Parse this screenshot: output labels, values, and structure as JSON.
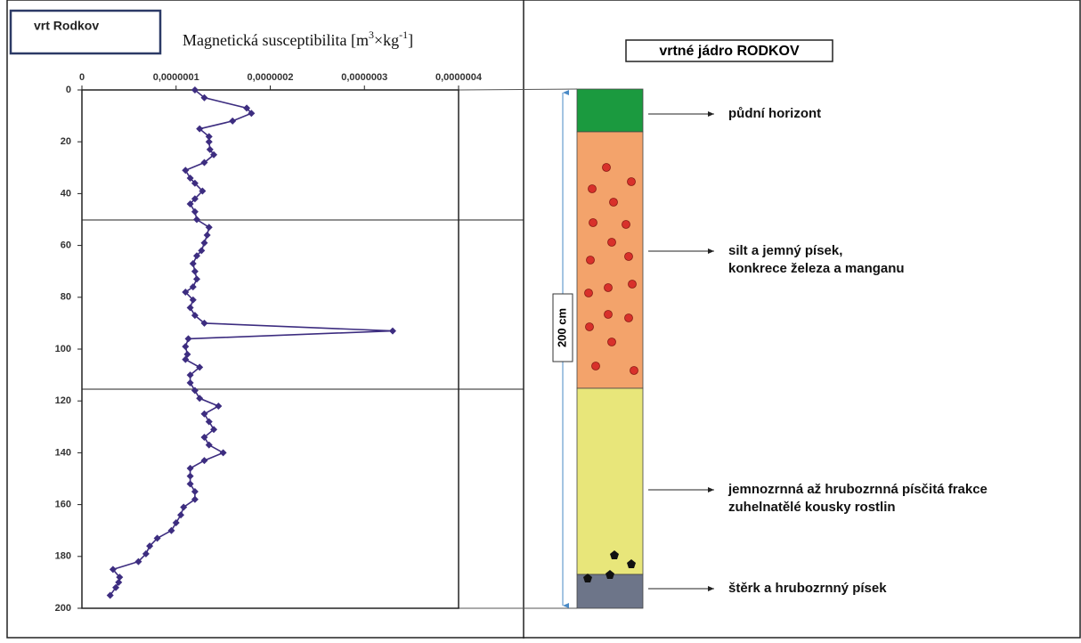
{
  "sidebar_label": "vrt Rodkov",
  "chart_data": {
    "type": "line",
    "orientation": "vertical",
    "title_parts": [
      "Magnetická susceptibilita [m",
      "3",
      "×kg",
      "-1",
      "]"
    ],
    "color": "#3d2d80",
    "xlim": [
      0,
      4e-07
    ],
    "xticks": [
      0,
      {
        "value": 1e-07,
        "label": "0,0000001"
      },
      {
        "value": 2e-07,
        "label": "0,0000002"
      },
      {
        "value": 3e-07,
        "label": "0,0000003"
      },
      {
        "value": 4e-07,
        "label": "0,0000004"
      }
    ],
    "ylim": [
      0,
      200
    ],
    "y_inverted": true,
    "yticks": [
      0,
      20,
      40,
      60,
      80,
      100,
      120,
      140,
      160,
      180,
      200
    ],
    "depth": [
      0,
      3,
      7,
      9,
      12,
      15,
      18,
      20,
      23,
      25,
      28,
      31,
      34,
      36,
      39,
      42,
      44,
      47,
      50,
      53,
      56,
      59,
      62,
      64,
      67,
      70,
      73,
      76,
      78,
      81,
      84,
      87,
      90,
      93,
      96,
      99,
      102,
      104,
      107,
      110,
      113,
      116,
      119,
      122,
      125,
      128,
      131,
      134,
      137,
      140,
      143,
      146,
      149,
      152,
      155,
      158,
      161,
      164,
      167,
      170,
      173,
      176,
      179,
      182,
      185,
      188,
      190,
      192,
      195
    ],
    "values": [
      1.2e-07,
      1.3e-07,
      1.75e-07,
      1.8e-07,
      1.6e-07,
      1.25e-07,
      1.35e-07,
      1.35e-07,
      1.36e-07,
      1.4e-07,
      1.3e-07,
      1.1e-07,
      1.15e-07,
      1.2e-07,
      1.28e-07,
      1.2e-07,
      1.15e-07,
      1.2e-07,
      1.22e-07,
      1.35e-07,
      1.33e-07,
      1.3e-07,
      1.27e-07,
      1.22e-07,
      1.18e-07,
      1.2e-07,
      1.22e-07,
      1.18e-07,
      1.1e-07,
      1.18e-07,
      1.15e-07,
      1.2e-07,
      1.3e-07,
      3.3e-07,
      1.13e-07,
      1.1e-07,
      1.12e-07,
      1.1e-07,
      1.25e-07,
      1.15e-07,
      1.15e-07,
      1.2e-07,
      1.25e-07,
      1.45e-07,
      1.3e-07,
      1.35e-07,
      1.4e-07,
      1.3e-07,
      1.35e-07,
      1.5e-07,
      1.3e-07,
      1.15e-07,
      1.15e-07,
      1.15e-07,
      1.2e-07,
      1.2e-07,
      1.08e-07,
      1.05e-07,
      1e-07,
      9.5e-08,
      8e-08,
      7.2e-08,
      6.8e-08,
      6e-08,
      3.3e-08,
      4e-08,
      3.9e-08,
      3.6e-08,
      3e-08
    ]
  },
  "core": {
    "title": "vrtné jádro RODKOV",
    "thickness_label": "200 cm",
    "layers": [
      {
        "lines": [
          "půdní horizont"
        ],
        "color": "#1b9a3f"
      },
      {
        "lines": [
          "silt a jemný písek,",
          "konkrece železa a manganu"
        ],
        "color": "#f3a36b"
      },
      {
        "lines": [
          "jemnozrnná až hrubozrnná písčitá frakce",
          "zuhelnatělé kousky rostlin"
        ],
        "color": "#e8e67a"
      },
      {
        "lines": [
          "štěrk a hrubozrnný písek"
        ],
        "color": "#6d7589"
      }
    ]
  }
}
